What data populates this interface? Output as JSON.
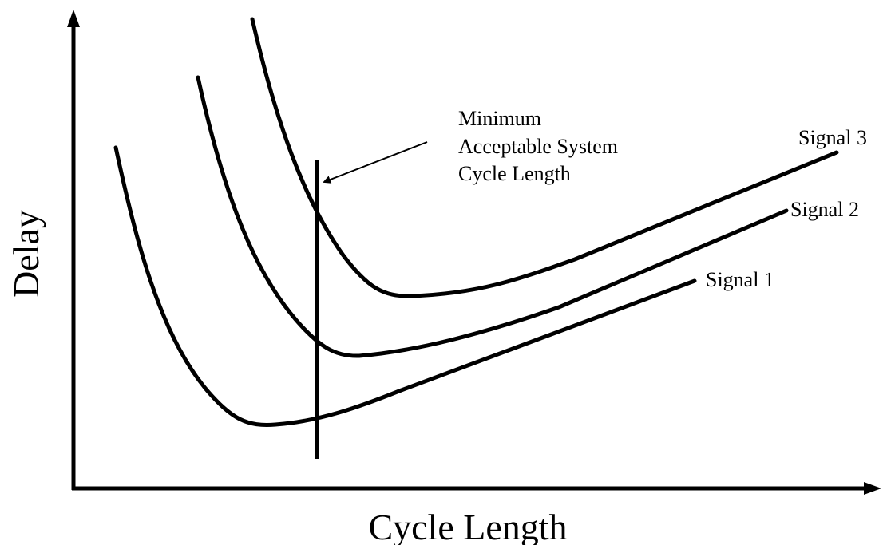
{
  "axes": {
    "x_label": "Cycle Length",
    "y_label": "Delay"
  },
  "curves": [
    {
      "label": "Signal 1"
    },
    {
      "label": "Signal 2"
    },
    {
      "label": "Signal 3"
    }
  ],
  "annotation": {
    "lines": [
      "Minimum",
      "Acceptable System",
      "Cycle Length"
    ]
  }
}
